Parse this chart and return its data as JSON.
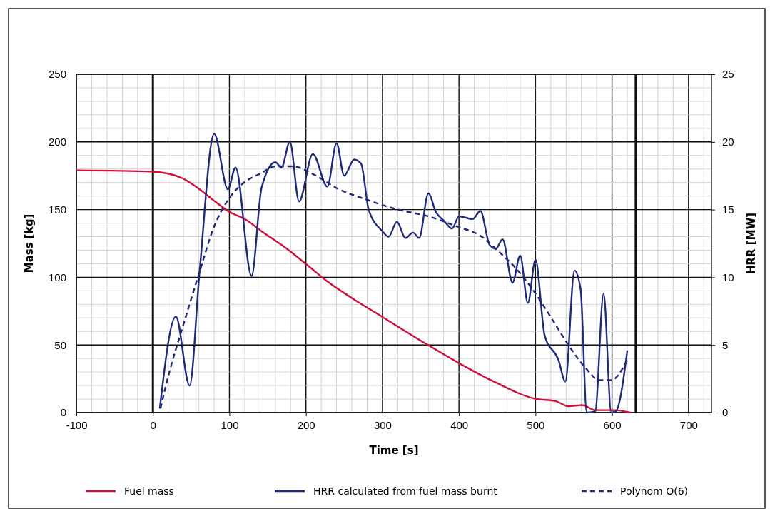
{
  "chart_data": {
    "type": "line",
    "xlabel": "Time [s]",
    "ylabel": "Mass [kg]",
    "y2label": "HRR [MW]",
    "xlim": [
      -100,
      730
    ],
    "xticks": [
      -100,
      0,
      100,
      200,
      300,
      400,
      500,
      600,
      700
    ],
    "ylim": [
      0,
      250
    ],
    "yticks": [
      0,
      50,
      100,
      150,
      200,
      250
    ],
    "y2lim": [
      0,
      25
    ],
    "y2ticks": [
      0,
      5,
      10,
      15,
      20,
      25
    ],
    "grid": true,
    "legend": "bottom",
    "marker": "none",
    "ref_lines": [
      {
        "axis": "x",
        "value": 0,
        "color": "#111111"
      },
      {
        "axis": "x",
        "value": 631,
        "color": "#111111"
      }
    ],
    "series": [
      {
        "name": "Fuel mass",
        "color": "#d0103a",
        "line_style": "solid",
        "x": [
          -100,
          0,
          39,
          61,
          79,
          98,
          123,
          142,
          173,
          204,
          229,
          260,
          300,
          360,
          400,
          444,
          500,
          527,
          543,
          561,
          578,
          603,
          624
        ],
        "values": [
          179,
          178,
          173,
          165,
          157,
          149,
          142,
          134,
          122,
          108,
          96.5,
          84.7,
          70.7,
          49.8,
          36.6,
          23.4,
          10.2,
          8.4,
          4.7,
          5.5,
          1.8,
          1.8,
          0
        ]
      },
      {
        "name": "HRR calculated from fuel mass burnt",
        "color": "#1f2a7a",
        "line_style": "solid",
        "axis": "y2",
        "x": [
          9,
          30,
          48,
          61,
          80,
          98,
          108,
          129,
          142,
          160,
          168,
          179,
          191,
          209,
          228,
          240,
          250,
          263,
          272,
          282,
          300,
          308,
          319,
          330,
          340,
          348,
          360,
          370,
          380,
          391,
          400,
          418,
          428,
          440,
          448,
          457,
          470,
          480,
          490,
          500,
          512,
          530,
          539,
          551,
          559,
          567,
          578,
          589,
          599,
          605,
          620
        ],
        "values": [
          0.3,
          7.1,
          2,
          10.4,
          20.6,
          16.5,
          18.1,
          10.1,
          16.6,
          18.5,
          18.1,
          20,
          15.6,
          19.1,
          16.7,
          19.9,
          17.5,
          18.7,
          18.4,
          15,
          13.4,
          13,
          14.1,
          12.9,
          13.3,
          12.9,
          16.2,
          14.8,
          14.2,
          13.6,
          14.5,
          14.3,
          14.9,
          12.4,
          12.1,
          12.8,
          9.6,
          11.6,
          8.1,
          11.3,
          5.7,
          3.9,
          2.3,
          10.5,
          9.1,
          0,
          0.1,
          8.8,
          0,
          0.1,
          4.6
        ]
      },
      {
        "name": "Polynom O(6)",
        "color": "#1f2a7a",
        "line_style": "dashed",
        "axis": "y2",
        "x": [
          10,
          17,
          42,
          61,
          79,
          98,
          117,
          142,
          160,
          182,
          210,
          243,
          276,
          320,
          360,
          400,
          427,
          450,
          477,
          500,
          524,
          543,
          564,
          584,
          599,
          620
        ],
        "values": [
          0.3,
          2,
          6.9,
          10.4,
          13.6,
          15.7,
          16.9,
          17.7,
          18.2,
          18.2,
          17.6,
          16.5,
          15.8,
          15,
          14.5,
          13.7,
          13.1,
          12,
          10.5,
          8.8,
          6.7,
          5,
          3.4,
          2.4,
          2.4,
          3.9
        ]
      }
    ]
  }
}
